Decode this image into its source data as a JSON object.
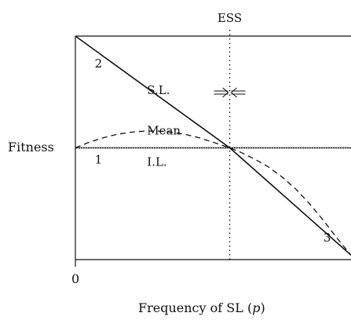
{
  "chart_data": {
    "type": "line",
    "title": "",
    "ylabel": "Fitness",
    "xlabel_text": "Frequency of SL (",
    "xlabel_var": "p",
    "xlabel_close": ")",
    "x_tick_labels": [
      "0"
    ],
    "xlim": [
      0,
      1
    ],
    "ylim": [
      0,
      1
    ],
    "ess_label": "ESS",
    "ess_x": 0.56,
    "il_fitness": 0.5,
    "series": [
      {
        "name": "S.L.",
        "style": "solid",
        "x": [
          0,
          0.56,
          1
        ],
        "y": [
          1.0,
          0.5,
          0.02
        ]
      },
      {
        "name": "Mean",
        "style": "dashed",
        "x": [
          0,
          0.05,
          0.1,
          0.15,
          0.2,
          0.25,
          0.3,
          0.35,
          0.4,
          0.45,
          0.5,
          0.56,
          0.6,
          0.65,
          0.7,
          0.75,
          0.8,
          0.85,
          0.9,
          0.95,
          1.0
        ],
        "y": [
          0.5,
          0.525,
          0.545,
          0.56,
          0.57,
          0.575,
          0.575,
          0.57,
          0.56,
          0.545,
          0.525,
          0.5,
          0.48,
          0.45,
          0.415,
          0.37,
          0.315,
          0.25,
          0.175,
          0.095,
          0.02
        ]
      },
      {
        "name": "I.L.",
        "style": "solid",
        "x": [
          0,
          1
        ],
        "y": [
          0.5,
          0.5
        ]
      }
    ],
    "point_labels": [
      {
        "text": "2",
        "x": 0.07,
        "y": 0.86
      },
      {
        "text": "1",
        "x": 0.07,
        "y": 0.43
      },
      {
        "text": "3",
        "x": 0.9,
        "y": 0.08
      }
    ],
    "series_labels": [
      {
        "text": "S.L.",
        "x": 0.26,
        "y": 0.74
      },
      {
        "text": "Mean",
        "x": 0.26,
        "y": 0.56
      },
      {
        "text": "I.L.",
        "x": 0.26,
        "y": 0.42
      }
    ]
  }
}
